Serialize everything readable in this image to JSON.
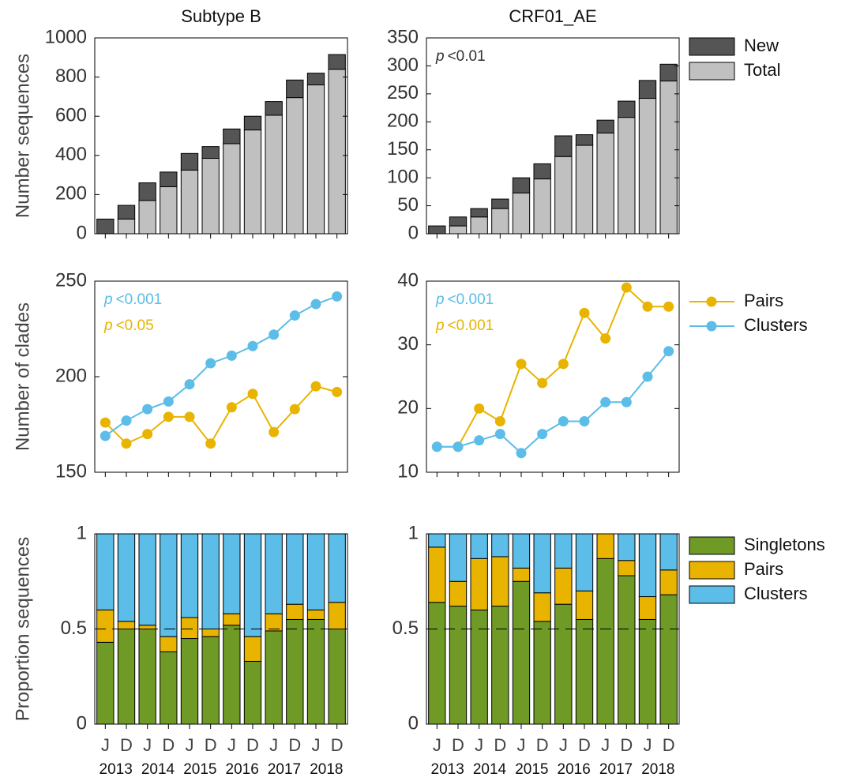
{
  "chart_data": [
    {
      "type": "stacked_bar",
      "title": "Subtype B",
      "ylabel": "Number sequences",
      "series": [
        {
          "color": "#c0c0c0",
          "values": [
            0,
            75,
            170,
            240,
            325,
            385,
            460,
            530,
            605,
            695,
            760,
            840
          ]
        },
        {
          "color": "#555555",
          "values": [
            75,
            70,
            90,
            75,
            85,
            60,
            75,
            70,
            70,
            90,
            60,
            75
          ]
        }
      ],
      "ylim": [
        0,
        1000
      ],
      "yticks": [
        0,
        200,
        400,
        600,
        800,
        1000
      ]
    },
    {
      "type": "stacked_bar",
      "title": "CRF01_AE",
      "series": [
        {
          "name": "Total",
          "color": "#c0c0c0",
          "values": [
            0,
            14,
            30,
            45,
            73,
            98,
            138,
            158,
            180,
            208,
            242,
            273
          ]
        },
        {
          "name": "New",
          "color": "#555555",
          "values": [
            14,
            16,
            15,
            17,
            27,
            27,
            37,
            19,
            23,
            29,
            32,
            30
          ]
        }
      ],
      "ylim": [
        0,
        350
      ],
      "yticks": [
        0,
        50,
        100,
        150,
        200,
        250,
        300,
        350
      ],
      "annotations": [
        {
          "italic": "p",
          "text": "<0.01",
          "color": "#333333"
        }
      ],
      "legend": true,
      "legend_reverse": true
    },
    {
      "type": "line",
      "ylabel": "Number of clades",
      "series": [
        {
          "color": "#e8b400",
          "values": [
            176,
            165,
            170,
            179,
            179,
            165,
            184,
            191,
            171,
            183,
            195,
            192
          ]
        },
        {
          "color": "#5bbde8",
          "values": [
            169,
            177,
            183,
            187,
            196,
            207,
            211,
            216,
            222,
            232,
            238,
            242
          ]
        }
      ],
      "ylim": [
        150,
        250
      ],
      "yticks": [
        150,
        200,
        250
      ],
      "annotations": [
        {
          "italic": "p",
          "text": "<0.001",
          "color": "#5bbde8"
        },
        {
          "italic": "p",
          "text": "<0.05",
          "color": "#e8b400"
        }
      ]
    },
    {
      "type": "line",
      "series": [
        {
          "name": "Pairs",
          "color": "#e8b400",
          "values": [
            14,
            14,
            20,
            18,
            27,
            24,
            27,
            35,
            31,
            39,
            36,
            36
          ]
        },
        {
          "name": "Clusters",
          "color": "#5bbde8",
          "values": [
            14,
            14,
            15,
            16,
            13,
            16,
            18,
            18,
            21,
            21,
            25,
            29
          ]
        }
      ],
      "ylim": [
        10,
        40
      ],
      "yticks": [
        10,
        20,
        30,
        40
      ],
      "annotations": [
        {
          "italic": "p",
          "text": "<0.001",
          "color": "#5bbde8"
        },
        {
          "italic": "p",
          "text": "<0.001",
          "color": "#e8b400"
        }
      ],
      "legend": true
    },
    {
      "type": "stacked_bar",
      "ylabel": "Proportion sequences",
      "categories": [
        "J",
        "D",
        "J",
        "D",
        "J",
        "D",
        "J",
        "D",
        "J",
        "D",
        "J",
        "D"
      ],
      "x_groups": [
        "2013",
        "2014",
        "2015",
        "2016",
        "2017",
        "2018"
      ],
      "series": [
        {
          "color": "#6f9a26",
          "values": [
            0.43,
            0.5,
            0.5,
            0.38,
            0.45,
            0.46,
            0.52,
            0.33,
            0.49,
            0.55,
            0.55,
            0.5
          ]
        },
        {
          "color": "#e8b400",
          "values": [
            0.17,
            0.04,
            0.02,
            0.08,
            0.11,
            0.04,
            0.06,
            0.13,
            0.09,
            0.08,
            0.05,
            0.14
          ]
        },
        {
          "color": "#5bbde8",
          "values": [
            0.4,
            0.46,
            0.48,
            0.54,
            0.44,
            0.5,
            0.42,
            0.54,
            0.42,
            0.37,
            0.4,
            0.36
          ]
        }
      ],
      "ylim": [
        0,
        1
      ],
      "yticks": [
        0,
        0.5,
        1
      ],
      "hline": 0.5
    },
    {
      "type": "stacked_bar",
      "categories": [
        "J",
        "D",
        "J",
        "D",
        "J",
        "D",
        "J",
        "D",
        "J",
        "D",
        "J",
        "D"
      ],
      "x_groups": [
        "2013",
        "2014",
        "2015",
        "2016",
        "2017",
        "2018"
      ],
      "series": [
        {
          "name": "Singletons",
          "color": "#6f9a26",
          "values": [
            0.64,
            0.62,
            0.6,
            0.62,
            0.75,
            0.54,
            0.63,
            0.55,
            0.87,
            0.78,
            0.55,
            0.68
          ]
        },
        {
          "name": "Pairs",
          "color": "#e8b400",
          "values": [
            0.29,
            0.13,
            0.27,
            0.26,
            0.07,
            0.15,
            0.19,
            0.15,
            0.13,
            0.08,
            0.12,
            0.13
          ]
        },
        {
          "name": "Clusters",
          "color": "#5bbde8",
          "values": [
            0.07,
            0.25,
            0.13,
            0.12,
            0.18,
            0.31,
            0.18,
            0.3,
            0,
            0.14,
            0.33,
            0.19
          ]
        }
      ],
      "ylim": [
        0,
        1
      ],
      "yticks": [
        0,
        0.5,
        1
      ],
      "hline": 0.5,
      "legend": true
    }
  ]
}
